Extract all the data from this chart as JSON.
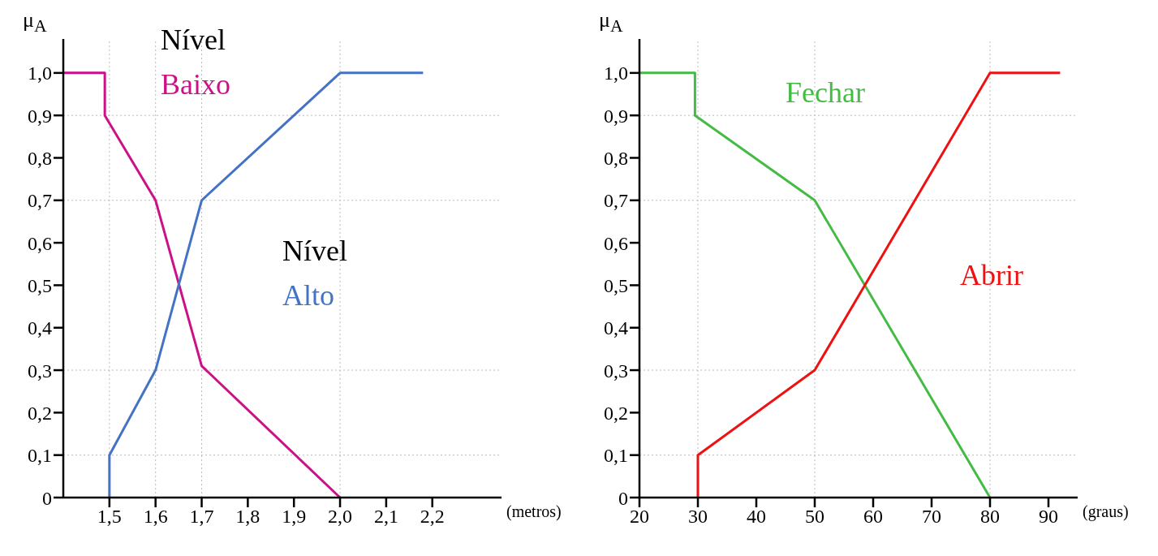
{
  "chart_data": [
    {
      "type": "line",
      "ylabel": "μ$_{A}$",
      "xlabel": "(metros)",
      "annotations": [
        "Nível",
        "Nível"
      ],
      "xlim": [
        1.4,
        2.35
      ],
      "xticks": [
        {
          "value": 1.5,
          "label": "1,5"
        },
        {
          "value": 1.6,
          "label": "1,6"
        },
        {
          "value": 1.7,
          "label": "1,7"
        },
        {
          "value": 1.8,
          "label": "1,8"
        },
        {
          "value": 1.9,
          "label": "1,9"
        },
        {
          "value": 2.0,
          "label": "2,0"
        },
        {
          "value": 2.1,
          "label": "2,1"
        },
        {
          "value": 2.2,
          "label": "2,2"
        }
      ],
      "ylim": [
        0,
        1.08
      ],
      "yticks": [
        {
          "value": 0,
          "label": "0"
        },
        {
          "value": 0.1,
          "label": "0,1"
        },
        {
          "value": 0.2,
          "label": "0,2"
        },
        {
          "value": 0.3,
          "label": "0,3"
        },
        {
          "value": 0.4,
          "label": "0,4"
        },
        {
          "value": 0.5,
          "label": "0,5"
        },
        {
          "value": 0.6,
          "label": "0,6"
        },
        {
          "value": 0.7,
          "label": "0,7"
        },
        {
          "value": 0.8,
          "label": "0,8"
        },
        {
          "value": 0.9,
          "label": "0,9"
        },
        {
          "value": 1.0,
          "label": "1,0"
        }
      ],
      "grid": false,
      "marker": "none",
      "ref_lines": [
        {
          "axis": "x",
          "value": 1.5,
          "color": "#bbbbbb",
          "line_style": "dotted"
        },
        {
          "axis": "x",
          "value": 1.6,
          "color": "#bbbbbb",
          "line_style": "dotted"
        },
        {
          "axis": "x",
          "value": 1.7,
          "color": "#bbbbbb",
          "line_style": "dotted"
        },
        {
          "axis": "x",
          "value": 2.0,
          "color": "#bbbbbb",
          "line_style": "dotted"
        },
        {
          "axis": "y",
          "value": 0.9,
          "color": "#bbbbbb",
          "line_style": "dotted"
        },
        {
          "axis": "y",
          "value": 0.7,
          "color": "#bbbbbb",
          "line_style": "dotted"
        },
        {
          "axis": "y",
          "value": 0.3,
          "color": "#bbbbbb",
          "line_style": "dotted"
        },
        {
          "axis": "y",
          "value": 0.1,
          "color": "#bbbbbb",
          "line_style": "dotted"
        }
      ],
      "series": [
        {
          "name": "Baixo",
          "color": "#cc1188",
          "x": [
            1.4,
            1.49,
            1.49,
            1.6,
            1.7,
            2.0
          ],
          "values": [
            1,
            1,
            0.9,
            0.7,
            0.31,
            0
          ]
        },
        {
          "name": "Alto",
          "color": "#4472c4",
          "x": [
            1.5,
            1.5,
            1.6,
            1.7,
            2.0,
            2.18
          ],
          "values": [
            0,
            0.1,
            0.3,
            0.7,
            1,
            1
          ]
        }
      ]
    },
    {
      "type": "line",
      "ylabel": "μ$_{A}$",
      "xlabel": "(graus)",
      "xlim": [
        20,
        95
      ],
      "xticks": [
        20,
        30,
        40,
        50,
        60,
        70,
        80,
        90
      ],
      "ylim": [
        0,
        1.08
      ],
      "yticks": [
        {
          "value": 0,
          "label": "0"
        },
        {
          "value": 0.1,
          "label": "0,1"
        },
        {
          "value": 0.2,
          "label": "0,2"
        },
        {
          "value": 0.3,
          "label": "0,3"
        },
        {
          "value": 0.4,
          "label": "0,4"
        },
        {
          "value": 0.5,
          "label": "0,5"
        },
        {
          "value": 0.6,
          "label": "0,6"
        },
        {
          "value": 0.7,
          "label": "0,7"
        },
        {
          "value": 0.8,
          "label": "0,8"
        },
        {
          "value": 0.9,
          "label": "0,9"
        },
        {
          "value": 1.0,
          "label": "1,0"
        }
      ],
      "grid": false,
      "marker": "none",
      "ref_lines": [
        {
          "axis": "x",
          "value": 30,
          "color": "#bbbbbb",
          "line_style": "dotted"
        },
        {
          "axis": "x",
          "value": 50,
          "color": "#bbbbbb",
          "line_style": "dotted"
        },
        {
          "axis": "x",
          "value": 80,
          "color": "#bbbbbb",
          "line_style": "dotted"
        },
        {
          "axis": "y",
          "value": 0.9,
          "color": "#bbbbbb",
          "line_style": "dotted"
        },
        {
          "axis": "y",
          "value": 0.7,
          "color": "#bbbbbb",
          "line_style": "dotted"
        },
        {
          "axis": "y",
          "value": 0.3,
          "color": "#bbbbbb",
          "line_style": "dotted"
        },
        {
          "axis": "y",
          "value": 0.1,
          "color": "#bbbbbb",
          "line_style": "dotted"
        }
      ],
      "series": [
        {
          "name": "Fechar",
          "color": "#44bb44",
          "x": [
            20,
            29.5,
            29.5,
            50,
            80
          ],
          "values": [
            1,
            1,
            0.9,
            0.7,
            0
          ]
        },
        {
          "name": "Abrir",
          "color": "#ee1111",
          "x": [
            30,
            30,
            50,
            80,
            92
          ],
          "values": [
            0,
            0.1,
            0.3,
            1,
            1
          ]
        }
      ]
    }
  ]
}
